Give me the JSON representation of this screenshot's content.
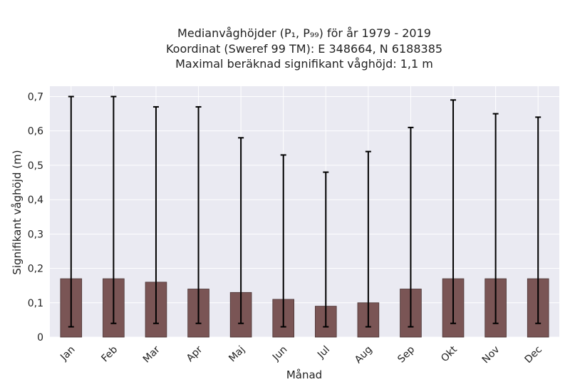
{
  "chart_data": {
    "type": "bar",
    "title_lines": [
      "Medianvåghöjder (P₁, P₉₉) för år 1979 - 2019",
      "Koordinat (Sweref 99 TM): E 348664, N 6188385",
      "Maximal beräknad signifikant våghöjd: 1,1 m"
    ],
    "xlabel": "Månad",
    "ylabel": "Signifikant våghöjd (m)",
    "categories": [
      "Jan",
      "Feb",
      "Mar",
      "Apr",
      "Maj",
      "Jun",
      "Jul",
      "Aug",
      "Sep",
      "Okt",
      "Nov",
      "Dec"
    ],
    "values": [
      0.17,
      0.17,
      0.16,
      0.14,
      0.13,
      0.11,
      0.09,
      0.1,
      0.14,
      0.17,
      0.17,
      0.17
    ],
    "err_low": [
      0.03,
      0.04,
      0.04,
      0.04,
      0.04,
      0.03,
      0.03,
      0.03,
      0.03,
      0.04,
      0.04,
      0.04
    ],
    "err_high": [
      0.7,
      0.7,
      0.67,
      0.67,
      0.58,
      0.53,
      0.48,
      0.54,
      0.61,
      0.69,
      0.65,
      0.64
    ],
    "ylim": [
      0,
      0.73
    ],
    "yticks": [
      0,
      0.1,
      0.2,
      0.3,
      0.4,
      0.5,
      0.6,
      0.7
    ],
    "ytick_labels": [
      "0",
      "0,1",
      "0,2",
      "0,3",
      "0,4",
      "0,5",
      "0,6",
      "0,7"
    ],
    "grid": true,
    "colors": {
      "bar": "#7a5555",
      "bar_edge": "#4a3535",
      "error": "#000000",
      "plot_bg": "#eaeaf2",
      "grid": "#ffffff"
    }
  }
}
